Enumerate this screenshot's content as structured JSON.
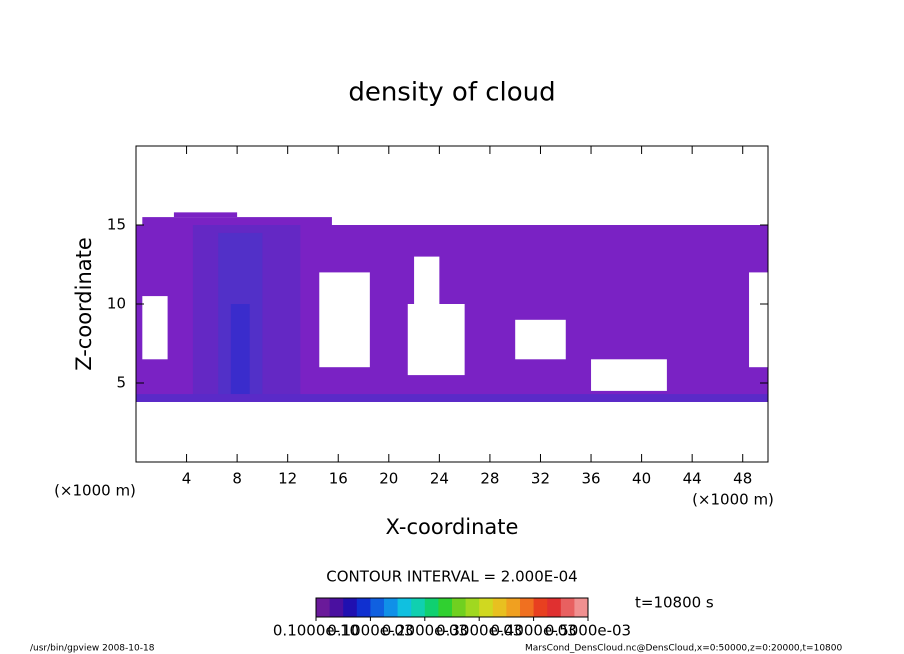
{
  "chart_data": {
    "type": "contour",
    "title": "density of cloud",
    "xlabel": "X-coordinate",
    "ylabel": "Z-coordinate",
    "xunit": "(×1000 m)",
    "yunit": "(×1000 m)",
    "xlim": [
      0,
      50
    ],
    "ylim": [
      0,
      20
    ],
    "xticks": [
      4,
      8,
      12,
      16,
      20,
      24,
      28,
      32,
      36,
      40,
      44,
      48
    ],
    "yticks": [
      5,
      10,
      15
    ],
    "regions": [
      {
        "x": [
          0,
          50
        ],
        "z": [
          3.8,
          15
        ],
        "color": "#7a22c4"
      },
      {
        "x": [
          0.5,
          15.5
        ],
        "z": [
          15,
          15.5
        ],
        "color": "#7a22c4"
      },
      {
        "x": [
          3,
          8
        ],
        "z": [
          15.5,
          15.8
        ],
        "color": "#7a22c4"
      },
      {
        "x": [
          4.5,
          13
        ],
        "z": [
          4,
          15
        ],
        "color": "#6428c4"
      },
      {
        "x": [
          6.5,
          10
        ],
        "z": [
          4,
          14.5
        ],
        "color": "#5230c8"
      },
      {
        "x": [
          7.5,
          9
        ],
        "z": [
          4,
          10
        ],
        "color": "#3a2ccc"
      },
      {
        "x": [
          0,
          50
        ],
        "z": [
          3.8,
          4.3
        ],
        "color": "#5a2ac8"
      },
      {
        "x": [
          14.5,
          18.5
        ],
        "z": [
          6,
          12
        ],
        "color": "#ffffff"
      },
      {
        "x": [
          22,
          24
        ],
        "z": [
          8,
          13
        ],
        "color": "#ffffff"
      },
      {
        "x": [
          21.5,
          26
        ],
        "z": [
          5.5,
          10
        ],
        "color": "#ffffff"
      },
      {
        "x": [
          30,
          34
        ],
        "z": [
          6.5,
          9
        ],
        "color": "#ffffff"
      },
      {
        "x": [
          36,
          42
        ],
        "z": [
          4.5,
          6.5
        ],
        "color": "#ffffff"
      },
      {
        "x": [
          0.5,
          2.5
        ],
        "z": [
          6.5,
          10.5
        ],
        "color": "#ffffff"
      },
      {
        "x": [
          48.5,
          50
        ],
        "z": [
          6,
          12
        ],
        "color": "#ffffff"
      }
    ],
    "contour_interval": "CONTOUR INTERVAL = 2.000E-04",
    "time": "t=10800 s",
    "colorbar": {
      "lim": [
        0,
        0.0005
      ],
      "colors": [
        "#6a1a9a",
        "#4a10a0",
        "#2010b0",
        "#1030d0",
        "#1060e0",
        "#1090e8",
        "#10c0e0",
        "#10d0b0",
        "#10d070",
        "#30d030",
        "#70d020",
        "#a0d820",
        "#d0d820",
        "#e8c020",
        "#f0a020",
        "#f07020",
        "#e84020",
        "#e03030",
        "#e86060",
        "#f09090"
      ],
      "ticks": [
        {
          "value": 1e-11,
          "label": "0.1000e-10"
        },
        {
          "value": 0.0001,
          "label": "0.1000e-03"
        },
        {
          "value": 0.0002,
          "label": "0.2000e-03"
        },
        {
          "value": 0.0003,
          "label": "0.3000e-03"
        },
        {
          "value": 0.0004,
          "label": "0.4000e-03"
        },
        {
          "value": 0.0005,
          "label": "0.5000e-03"
        }
      ]
    },
    "footer_left": "/usr/bin/gpview   2008-10-18",
    "footer_right": "MarsCond_DensCloud.nc@DensCloud,x=0:50000,z=0:20000,t=10800"
  }
}
